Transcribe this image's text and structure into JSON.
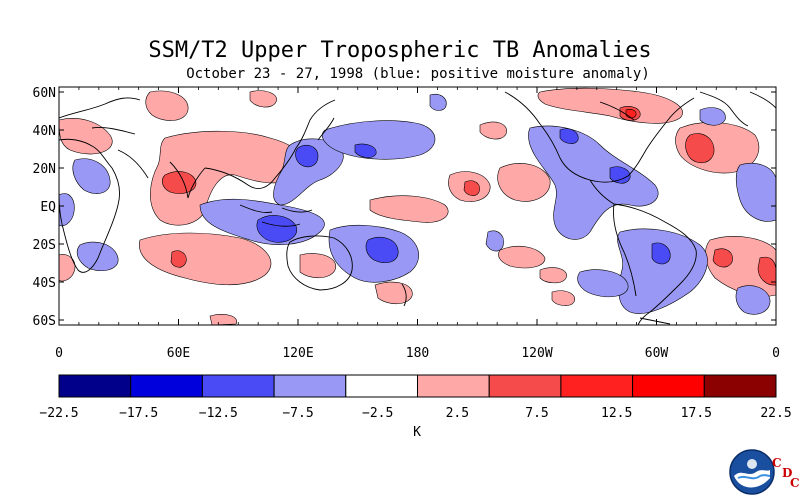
{
  "title": "SSM/T2 Upper Tropospheric TB Anomalies",
  "subtitle": "October 23 - 27, 1998 (blue: positive moisture anomaly)",
  "map": {
    "lat_labels": [
      "60N",
      "40N",
      "20N",
      "EQ",
      "20S",
      "40S",
      "60S"
    ],
    "lon_labels": [
      "0",
      "60E",
      "120E",
      "180",
      "120W",
      "60W",
      "0"
    ]
  },
  "colorbar": {
    "unit": "K",
    "ticks": [
      "-22.5",
      "-17.5",
      "-12.5",
      "-7.5",
      "-2.5",
      "2.5",
      "7.5",
      "12.5",
      "17.5",
      "22.5"
    ],
    "colors": [
      "#00008b",
      "#0000dd",
      "#4b4bf5",
      "#9999f5",
      "#ffffff",
      "#ffa8a8",
      "#f54b4b",
      "#ff2020",
      "#ff0000",
      "#8b0000"
    ]
  },
  "branding": {
    "logo": "noaa-logo-icon",
    "cdc_letters": [
      "C",
      "D",
      "C"
    ]
  }
}
